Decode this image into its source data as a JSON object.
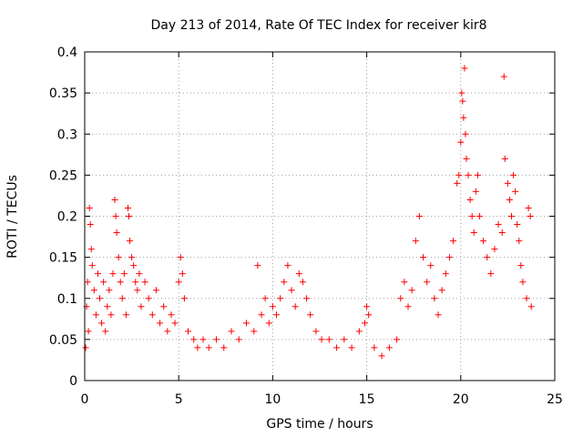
{
  "chart_data": {
    "type": "scatter",
    "title": "Day 213 of 2014, Rate Of TEC Index for receiver kir8",
    "xlabel": "GPS time / hours",
    "ylabel": "ROTI / TECUs",
    "xlim": [
      0,
      25
    ],
    "ylim": [
      0,
      0.4
    ],
    "xticks": [
      0,
      5,
      10,
      15,
      20,
      25
    ],
    "xtick_labels": [
      "0",
      "5",
      "10",
      "15",
      "20",
      "25"
    ],
    "yticks": [
      0,
      0.05,
      0.1,
      0.15,
      0.2,
      0.25,
      0.3,
      0.35,
      0.4
    ],
    "ytick_labels": [
      "0",
      "0.05",
      "0.1",
      "0.15",
      "0.2",
      "0.25",
      "0.3",
      "0.35",
      "0.4"
    ],
    "grid": true,
    "marker": "+",
    "marker_color": "#ff0000",
    "series": [
      {
        "name": "ROTI",
        "color": "#ff0000",
        "points": [
          [
            0.05,
            0.04
          ],
          [
            0.1,
            0.09
          ],
          [
            0.15,
            0.12
          ],
          [
            0.2,
            0.06
          ],
          [
            0.25,
            0.21
          ],
          [
            0.3,
            0.19
          ],
          [
            0.35,
            0.16
          ],
          [
            0.4,
            0.14
          ],
          [
            0.5,
            0.11
          ],
          [
            0.6,
            0.08
          ],
          [
            0.7,
            0.13
          ],
          [
            0.8,
            0.1
          ],
          [
            0.9,
            0.07
          ],
          [
            1.0,
            0.12
          ],
          [
            1.1,
            0.06
          ],
          [
            1.2,
            0.09
          ],
          [
            1.3,
            0.11
          ],
          [
            1.4,
            0.08
          ],
          [
            1.5,
            0.13
          ],
          [
            1.6,
            0.22
          ],
          [
            1.65,
            0.2
          ],
          [
            1.7,
            0.18
          ],
          [
            1.8,
            0.15
          ],
          [
            1.9,
            0.12
          ],
          [
            2.0,
            0.1
          ],
          [
            2.1,
            0.13
          ],
          [
            2.2,
            0.08
          ],
          [
            2.3,
            0.21
          ],
          [
            2.35,
            0.2
          ],
          [
            2.4,
            0.17
          ],
          [
            2.5,
            0.15
          ],
          [
            2.6,
            0.14
          ],
          [
            2.7,
            0.12
          ],
          [
            2.8,
            0.11
          ],
          [
            2.9,
            0.13
          ],
          [
            3.0,
            0.09
          ],
          [
            3.2,
            0.12
          ],
          [
            3.4,
            0.1
          ],
          [
            3.6,
            0.08
          ],
          [
            3.8,
            0.11
          ],
          [
            4.0,
            0.07
          ],
          [
            4.2,
            0.09
          ],
          [
            4.4,
            0.06
          ],
          [
            4.6,
            0.08
          ],
          [
            4.8,
            0.07
          ],
          [
            5.0,
            0.12
          ],
          [
            5.1,
            0.15
          ],
          [
            5.2,
            0.13
          ],
          [
            5.3,
            0.1
          ],
          [
            5.5,
            0.06
          ],
          [
            5.8,
            0.05
          ],
          [
            6.0,
            0.04
          ],
          [
            6.3,
            0.05
          ],
          [
            6.6,
            0.04
          ],
          [
            7.0,
            0.05
          ],
          [
            7.4,
            0.04
          ],
          [
            7.8,
            0.06
          ],
          [
            8.2,
            0.05
          ],
          [
            8.6,
            0.07
          ],
          [
            9.0,
            0.06
          ],
          [
            9.2,
            0.14
          ],
          [
            9.4,
            0.08
          ],
          [
            9.6,
            0.1
          ],
          [
            9.8,
            0.07
          ],
          [
            10.0,
            0.09
          ],
          [
            10.2,
            0.08
          ],
          [
            10.4,
            0.1
          ],
          [
            10.6,
            0.12
          ],
          [
            10.8,
            0.14
          ],
          [
            11.0,
            0.11
          ],
          [
            11.2,
            0.09
          ],
          [
            11.4,
            0.13
          ],
          [
            11.6,
            0.12
          ],
          [
            11.8,
            0.1
          ],
          [
            12.0,
            0.08
          ],
          [
            12.3,
            0.06
          ],
          [
            12.6,
            0.05
          ],
          [
            13.0,
            0.05
          ],
          [
            13.4,
            0.04
          ],
          [
            13.8,
            0.05
          ],
          [
            14.2,
            0.04
          ],
          [
            14.6,
            0.06
          ],
          [
            14.9,
            0.07
          ],
          [
            15.0,
            0.09
          ],
          [
            15.1,
            0.08
          ],
          [
            15.4,
            0.04
          ],
          [
            15.8,
            0.03
          ],
          [
            16.2,
            0.04
          ],
          [
            16.6,
            0.05
          ],
          [
            16.8,
            0.1
          ],
          [
            17.0,
            0.12
          ],
          [
            17.2,
            0.09
          ],
          [
            17.4,
            0.11
          ],
          [
            17.6,
            0.17
          ],
          [
            17.8,
            0.2
          ],
          [
            18.0,
            0.15
          ],
          [
            18.2,
            0.12
          ],
          [
            18.4,
            0.14
          ],
          [
            18.6,
            0.1
          ],
          [
            18.8,
            0.08
          ],
          [
            19.0,
            0.11
          ],
          [
            19.2,
            0.13
          ],
          [
            19.4,
            0.15
          ],
          [
            19.6,
            0.17
          ],
          [
            19.8,
            0.24
          ],
          [
            19.9,
            0.25
          ],
          [
            20.0,
            0.29
          ],
          [
            20.05,
            0.35
          ],
          [
            20.1,
            0.34
          ],
          [
            20.15,
            0.32
          ],
          [
            20.2,
            0.38
          ],
          [
            20.25,
            0.3
          ],
          [
            20.3,
            0.27
          ],
          [
            20.4,
            0.25
          ],
          [
            20.5,
            0.22
          ],
          [
            20.6,
            0.2
          ],
          [
            20.7,
            0.18
          ],
          [
            20.8,
            0.23
          ],
          [
            20.9,
            0.25
          ],
          [
            21.0,
            0.2
          ],
          [
            21.2,
            0.17
          ],
          [
            21.4,
            0.15
          ],
          [
            21.6,
            0.13
          ],
          [
            21.8,
            0.16
          ],
          [
            22.0,
            0.19
          ],
          [
            22.2,
            0.18
          ],
          [
            22.3,
            0.37
          ],
          [
            22.35,
            0.27
          ],
          [
            22.5,
            0.24
          ],
          [
            22.6,
            0.22
          ],
          [
            22.7,
            0.2
          ],
          [
            22.8,
            0.25
          ],
          [
            22.9,
            0.23
          ],
          [
            23.0,
            0.19
          ],
          [
            23.1,
            0.17
          ],
          [
            23.2,
            0.14
          ],
          [
            23.3,
            0.12
          ],
          [
            23.5,
            0.1
          ],
          [
            23.6,
            0.21
          ],
          [
            23.7,
            0.2
          ],
          [
            23.75,
            0.09
          ]
        ]
      }
    ]
  }
}
